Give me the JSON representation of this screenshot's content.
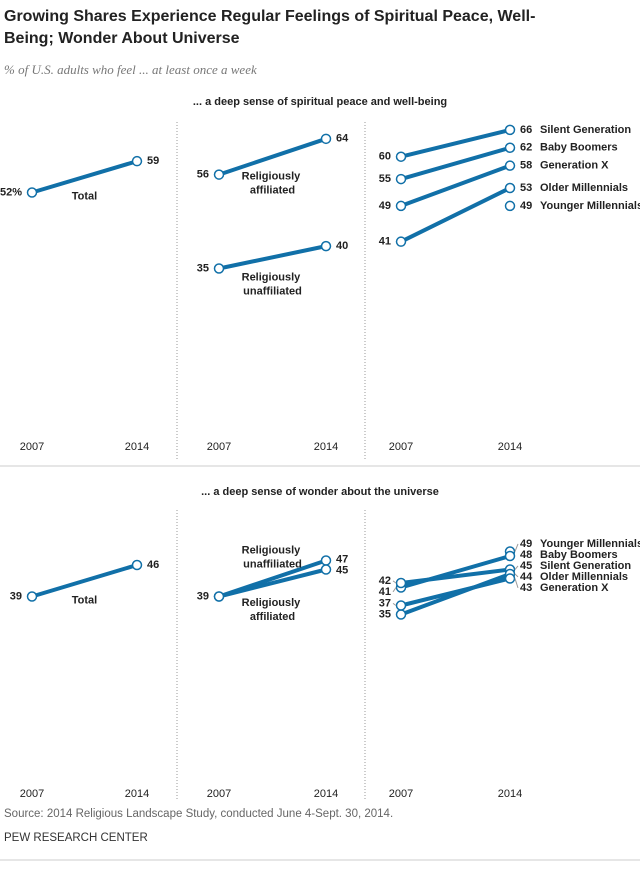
{
  "title": "Growing Shares Experience Regular Feelings of Spiritual Peace, Well-Being; Wonder About Universe",
  "subtitle": "% of U.S. adults who feel ... at least once a week",
  "source": "Source: 2014 Religious Landscape Study, conducted June 4-Sept. 30, 2014.",
  "credit": "PEW RESEARCH CENTER",
  "chart_data": [
    {
      "type": "line",
      "title": "... a deep sense of spiritual peace and well-being",
      "x": [
        "2007",
        "2014"
      ],
      "ylim": [
        0,
        70
      ],
      "legend": "middle",
      "series": [
        {
          "name": "Total",
          "color": "#1170a8",
          "values": [
            52,
            59
          ],
          "value_labels": [
            "52%",
            "59"
          ]
        }
      ]
    },
    {
      "type": "line",
      "x": [
        "2007",
        "2014"
      ],
      "ylim": [
        0,
        70
      ],
      "legend": "middle",
      "series": [
        {
          "name": "Religiously affiliated",
          "color": "#1170a8",
          "values": [
            56,
            64
          ]
        },
        {
          "name": "Religiously unaffiliated",
          "color": "#1170a8",
          "values": [
            35,
            40
          ]
        }
      ]
    },
    {
      "type": "line",
      "x": [
        "2007",
        "2014"
      ],
      "ylim": [
        0,
        70
      ],
      "legend": "end",
      "series": [
        {
          "name": "Silent Generation",
          "color": "#1170a8",
          "values": [
            60,
            66
          ]
        },
        {
          "name": "Baby Boomers",
          "color": "#1170a8",
          "values": [
            55,
            62
          ]
        },
        {
          "name": "Generation X",
          "color": "#1170a8",
          "values": [
            49,
            58
          ]
        },
        {
          "name": "Older Millennials",
          "color": "#1170a8",
          "values": [
            41,
            53
          ]
        },
        {
          "name": "Younger Millennials",
          "color": "#1170a8",
          "values": [
            null,
            49
          ]
        }
      ]
    },
    {
      "type": "line",
      "title": "... a deep sense of wonder about the universe",
      "x": [
        "2007",
        "2014"
      ],
      "ylim": [
        0,
        60
      ],
      "legend": "middle",
      "series": [
        {
          "name": "Total",
          "color": "#1170a8",
          "values": [
            39,
            46
          ]
        }
      ]
    },
    {
      "type": "line",
      "x": [
        "2007",
        "2014"
      ],
      "ylim": [
        0,
        60
      ],
      "legend": "middle",
      "series": [
        {
          "name": "Religiously unaffiliated",
          "color": "#1170a8",
          "values": [
            39,
            47
          ]
        },
        {
          "name": "Religiously affiliated",
          "color": "#1170a8",
          "values": [
            39,
            45
          ]
        }
      ]
    },
    {
      "type": "line",
      "x": [
        "2007",
        "2014"
      ],
      "ylim": [
        0,
        60
      ],
      "legend": "end",
      "series": [
        {
          "name": "Younger Millennials",
          "color": "#1170a8",
          "values": [
            null,
            49
          ]
        },
        {
          "name": "Baby Boomers",
          "color": "#1170a8",
          "values": [
            41,
            48
          ]
        },
        {
          "name": "Silent Generation",
          "color": "#1170a8",
          "values": [
            42,
            45
          ]
        },
        {
          "name": "Older Millennials",
          "color": "#1170a8",
          "values": [
            35,
            44
          ]
        },
        {
          "name": "Generation X",
          "color": "#1170a8",
          "values": [
            37,
            43
          ]
        }
      ]
    }
  ]
}
